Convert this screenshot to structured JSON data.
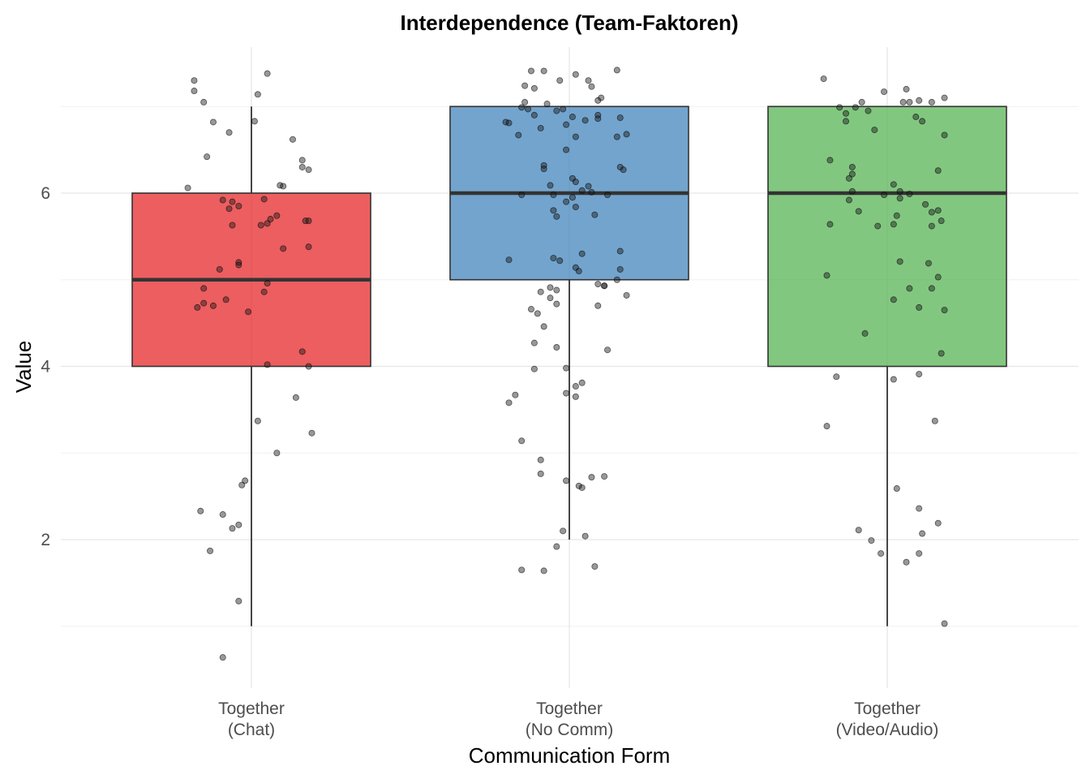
{
  "chart_data": {
    "type": "boxplot",
    "title": "Interdependence (Team-Faktoren)",
    "xlabel": "Communication Form",
    "ylabel": "Value",
    "ylim": [
      0.45,
      7.6
    ],
    "yticks": [
      2,
      4,
      6
    ],
    "grid": true,
    "legend": "none",
    "categories": [
      {
        "line1": "Together",
        "line2": "(Chat)"
      },
      {
        "line1": "Together",
        "line2": "(No Comm)"
      },
      {
        "line1": "Together",
        "line2": "(Video/Audio)"
      }
    ],
    "series": [
      {
        "color": "#e41a1c",
        "box": {
          "min": 1,
          "q1": 4,
          "median": 5,
          "q3": 6,
          "max": 7
        },
        "points": [
          [
            -0.18,
            7.3
          ],
          [
            -0.18,
            7.18
          ],
          [
            -0.15,
            7.05
          ],
          [
            -0.12,
            6.82
          ],
          [
            -0.07,
            6.7
          ],
          [
            0.02,
            7.14
          ],
          [
            0.05,
            7.38
          ],
          [
            0.01,
            6.83
          ],
          [
            0.13,
            6.62
          ],
          [
            -0.14,
            6.42
          ],
          [
            0.16,
            6.38
          ],
          [
            0.16,
            6.3
          ],
          [
            0.18,
            6.27
          ],
          [
            -0.2,
            6.06
          ],
          [
            0.09,
            6.09
          ],
          [
            0.1,
            6.08
          ],
          [
            -0.09,
            5.92
          ],
          [
            -0.06,
            5.9
          ],
          [
            0.04,
            5.93
          ],
          [
            -0.07,
            5.82
          ],
          [
            -0.04,
            5.85
          ],
          [
            0.08,
            5.74
          ],
          [
            0.06,
            5.7
          ],
          [
            0.17,
            5.68
          ],
          [
            0.18,
            5.68
          ],
          [
            -0.06,
            5.63
          ],
          [
            0.03,
            5.63
          ],
          [
            0.05,
            5.65
          ],
          [
            0.1,
            5.36
          ],
          [
            0.18,
            5.38
          ],
          [
            -0.1,
            5.12
          ],
          [
            -0.04,
            5.2
          ],
          [
            -0.04,
            5.17
          ],
          [
            0.05,
            4.96
          ],
          [
            -0.15,
            4.9
          ],
          [
            0.04,
            4.86
          ],
          [
            -0.08,
            4.77
          ],
          [
            -0.15,
            4.73
          ],
          [
            -0.12,
            4.7
          ],
          [
            -0.17,
            4.68
          ],
          [
            -0.01,
            4.63
          ],
          [
            0.05,
            4.02
          ],
          [
            0.16,
            4.17
          ],
          [
            0.18,
            4.0
          ],
          [
            0.14,
            3.64
          ],
          [
            0.02,
            3.37
          ],
          [
            0.19,
            3.23
          ],
          [
            0.08,
            3.0
          ],
          [
            -0.02,
            2.68
          ],
          [
            -0.03,
            2.63
          ],
          [
            -0.16,
            2.33
          ],
          [
            -0.09,
            2.29
          ],
          [
            -0.04,
            2.17
          ],
          [
            -0.06,
            2.13
          ],
          [
            -0.13,
            1.87
          ],
          [
            -0.04,
            1.29
          ],
          [
            -0.09,
            0.64
          ]
        ]
      },
      {
        "color": "#377eb8",
        "box": {
          "min": 2,
          "q1": 5,
          "median": 6,
          "q3": 7,
          "max": 7
        },
        "points": [
          [
            -0.12,
            7.41
          ],
          [
            -0.08,
            7.41
          ],
          [
            0.02,
            7.37
          ],
          [
            0.15,
            7.42
          ],
          [
            -0.03,
            7.3
          ],
          [
            0.06,
            7.3
          ],
          [
            -0.14,
            7.24
          ],
          [
            -0.11,
            7.21
          ],
          [
            0.07,
            7.23
          ],
          [
            0.1,
            7.1
          ],
          [
            0.09,
            7.07
          ],
          [
            -0.14,
            7.05
          ],
          [
            -0.07,
            7.03
          ],
          [
            -0.15,
            6.99
          ],
          [
            -0.13,
            6.97
          ],
          [
            -0.02,
            6.97
          ],
          [
            -0.04,
            6.95
          ],
          [
            -0.11,
            6.9
          ],
          [
            0.01,
            6.88
          ],
          [
            0.09,
            6.9
          ],
          [
            0.09,
            6.86
          ],
          [
            0.16,
            6.87
          ],
          [
            0.05,
            6.84
          ],
          [
            -0.2,
            6.82
          ],
          [
            -0.19,
            6.81
          ],
          [
            -0.01,
            6.79
          ],
          [
            -0.09,
            6.75
          ],
          [
            0.18,
            6.68
          ],
          [
            0.15,
            6.65
          ],
          [
            -0.16,
            6.67
          ],
          [
            0.02,
            6.65
          ],
          [
            -0.01,
            6.5
          ],
          [
            -0.08,
            6.32
          ],
          [
            -0.08,
            6.28
          ],
          [
            0.16,
            6.3
          ],
          [
            0.17,
            6.27
          ],
          [
            0.01,
            6.17
          ],
          [
            0.02,
            6.13
          ],
          [
            -0.06,
            6.09
          ],
          [
            0.06,
            6.08
          ],
          [
            0.04,
            6.03
          ],
          [
            0.07,
            6.01
          ],
          [
            -0.15,
            5.98
          ],
          [
            -0.05,
            5.98
          ],
          [
            0.01,
            5.95
          ],
          [
            0.12,
            5.98
          ],
          [
            -0.01,
            5.9
          ],
          [
            0.02,
            5.84
          ],
          [
            -0.05,
            5.8
          ],
          [
            0.08,
            5.75
          ],
          [
            -0.04,
            5.73
          ],
          [
            0.16,
            5.33
          ],
          [
            0.04,
            5.3
          ],
          [
            0.16,
            5.12
          ],
          [
            -0.05,
            5.25
          ],
          [
            -0.03,
            5.22
          ],
          [
            0.02,
            5.14
          ],
          [
            -0.19,
            5.23
          ],
          [
            0.03,
            5.1
          ],
          [
            0.15,
            5.0
          ],
          [
            0.09,
            4.95
          ],
          [
            -0.06,
            4.91
          ],
          [
            -0.04,
            4.88
          ],
          [
            -0.09,
            4.86
          ],
          [
            0.11,
            4.93
          ],
          [
            0.11,
            4.93
          ],
          [
            -0.06,
            4.79
          ],
          [
            -0.04,
            4.72
          ],
          [
            0.18,
            4.82
          ],
          [
            0.09,
            4.7
          ],
          [
            -0.12,
            4.66
          ],
          [
            -0.1,
            4.61
          ],
          [
            -0.08,
            4.46
          ],
          [
            -0.11,
            4.27
          ],
          [
            -0.04,
            4.22
          ],
          [
            0.12,
            4.19
          ],
          [
            -0.11,
            3.97
          ],
          [
            -0.01,
            3.98
          ],
          [
            0.04,
            3.81
          ],
          [
            0.02,
            3.77
          ],
          [
            -0.01,
            3.69
          ],
          [
            0.02,
            3.65
          ],
          [
            -0.17,
            3.67
          ],
          [
            -0.19,
            3.58
          ],
          [
            -0.15,
            3.14
          ],
          [
            -0.09,
            2.92
          ],
          [
            -0.09,
            2.76
          ],
          [
            0.11,
            2.73
          ],
          [
            0.07,
            2.72
          ],
          [
            -0.01,
            2.68
          ],
          [
            0.03,
            2.62
          ],
          [
            0.04,
            2.6
          ],
          [
            -0.02,
            2.1
          ],
          [
            -0.04,
            1.92
          ],
          [
            0.05,
            2.04
          ],
          [
            0.08,
            1.69
          ],
          [
            -0.15,
            1.65
          ],
          [
            -0.08,
            1.64
          ]
        ]
      },
      {
        "color": "#4daf4a",
        "box": {
          "min": 1,
          "q1": 4,
          "median": 6,
          "q3": 7,
          "max": 7
        },
        "points": [
          [
            -0.2,
            7.32
          ],
          [
            -0.01,
            7.17
          ],
          [
            0.06,
            7.2
          ],
          [
            -0.08,
            7.05
          ],
          [
            -0.1,
            6.99
          ],
          [
            0.05,
            7.05
          ],
          [
            0.07,
            7.05
          ],
          [
            0.1,
            7.07
          ],
          [
            0.18,
            7.1
          ],
          [
            0.14,
            7.05
          ],
          [
            -0.06,
            6.95
          ],
          [
            -0.13,
            6.92
          ],
          [
            -0.13,
            6.83
          ],
          [
            0.09,
            6.88
          ],
          [
            -0.15,
            6.99
          ],
          [
            -0.04,
            6.73
          ],
          [
            0.11,
            6.83
          ],
          [
            0.18,
            6.67
          ],
          [
            -0.18,
            6.38
          ],
          [
            -0.11,
            6.3
          ],
          [
            -0.11,
            6.22
          ],
          [
            -0.12,
            6.17
          ],
          [
            0.16,
            6.26
          ],
          [
            0.02,
            6.1
          ],
          [
            0.04,
            6.02
          ],
          [
            -0.11,
            6.02
          ],
          [
            -0.01,
            5.98
          ],
          [
            0.07,
            5.99
          ],
          [
            0.04,
            5.94
          ],
          [
            -0.12,
            5.92
          ],
          [
            0.12,
            5.87
          ],
          [
            0.16,
            5.8
          ],
          [
            -0.09,
            5.79
          ],
          [
            0.14,
            5.78
          ],
          [
            0.03,
            5.74
          ],
          [
            0.17,
            5.68
          ],
          [
            0.14,
            5.62
          ],
          [
            -0.18,
            5.64
          ],
          [
            0.02,
            5.64
          ],
          [
            -0.03,
            5.62
          ],
          [
            -0.19,
            5.05
          ],
          [
            0.04,
            5.21
          ],
          [
            0.13,
            5.19
          ],
          [
            0.16,
            5.03
          ],
          [
            0.07,
            4.9
          ],
          [
            0.14,
            4.9
          ],
          [
            0.02,
            4.77
          ],
          [
            0.1,
            4.68
          ],
          [
            0.18,
            4.65
          ],
          [
            -0.07,
            4.38
          ],
          [
            0.17,
            4.15
          ],
          [
            -0.16,
            3.88
          ],
          [
            0.02,
            3.85
          ],
          [
            0.1,
            3.91
          ],
          [
            -0.19,
            3.31
          ],
          [
            0.15,
            3.37
          ],
          [
            0.03,
            2.59
          ],
          [
            0.1,
            2.36
          ],
          [
            0.16,
            2.19
          ],
          [
            -0.09,
            2.11
          ],
          [
            0.11,
            2.07
          ],
          [
            -0.05,
            1.99
          ],
          [
            -0.02,
            1.84
          ],
          [
            0.1,
            1.84
          ],
          [
            0.06,
            1.74
          ],
          [
            0.18,
            1.03
          ]
        ]
      }
    ]
  }
}
